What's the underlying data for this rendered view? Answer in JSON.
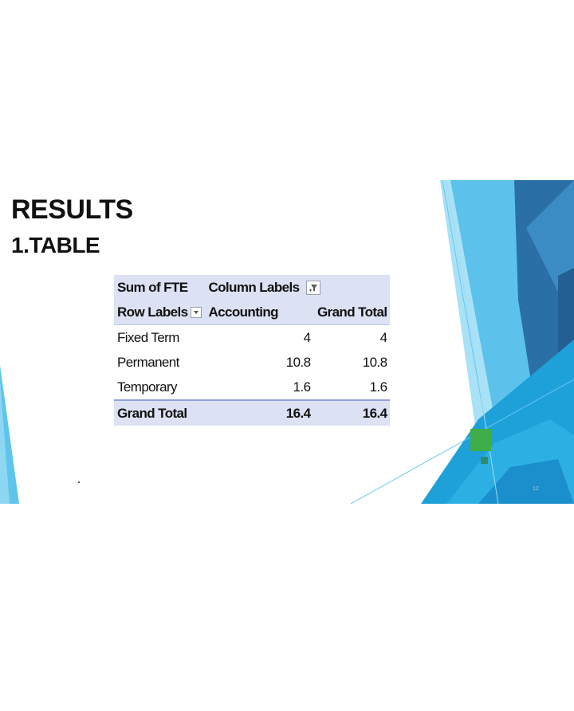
{
  "slide": {
    "title": "RESULTS",
    "subtitle": "1.TABLE",
    "slide_number": "12",
    "colors": {
      "accent_dark": "#1f6fa8",
      "accent_mid": "#2ea3d8",
      "accent_light": "#7fd0f0",
      "green_marker": "#3fae4a",
      "pivot_header_bg": "#dce1f3"
    }
  },
  "pivot": {
    "corner_label": "Sum of FTE",
    "column_labels": "Column Labels",
    "row_labels": "Row Labels",
    "column_headers": [
      "Accounting",
      "Grand Total"
    ],
    "rows": [
      {
        "label": "Fixed Term",
        "accounting": "4",
        "grand_total": "4"
      },
      {
        "label": "Permanent",
        "accounting": "10.8",
        "grand_total": "10.8"
      },
      {
        "label": "Temporary",
        "accounting": "1.6",
        "grand_total": "1.6"
      }
    ],
    "total": {
      "label": "Grand Total",
      "accounting": "16.4",
      "grand_total": "16.4"
    },
    "icons": {
      "column_filter": "filter-icon",
      "row_dropdown": "dropdown-arrow-icon"
    }
  }
}
